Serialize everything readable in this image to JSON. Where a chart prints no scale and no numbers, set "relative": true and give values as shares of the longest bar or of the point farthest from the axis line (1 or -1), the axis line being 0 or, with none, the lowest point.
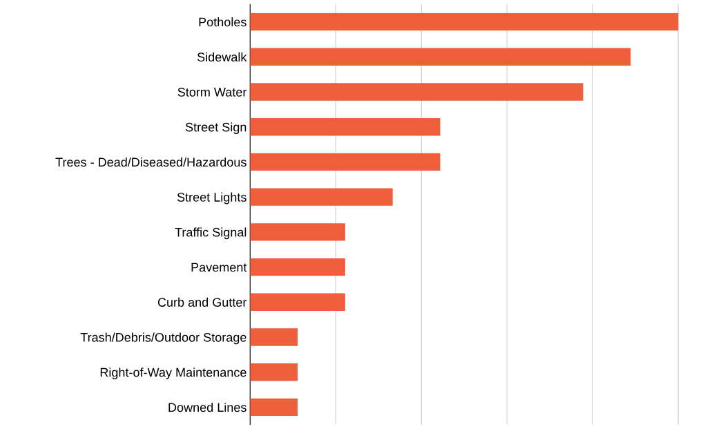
{
  "chart_data": {
    "type": "bar",
    "orientation": "horizontal",
    "relative": true,
    "grid": "x",
    "color": "#ef5f3c",
    "categories": [
      "Potholes",
      "Sidewalk",
      "Storm Water",
      "Street Sign",
      "Trees - Dead/Diseased/Hazardous",
      "Street Lights",
      "Traffic Signal",
      "Pavement",
      "Curb and Gutter",
      "Trash/Debris/Outdoor Storage",
      "Right-of-Way Maintenance",
      "Downed Lines"
    ],
    "values": [
      1,
      0.889,
      0.778,
      0.444,
      0.444,
      0.333,
      0.222,
      0.222,
      0.222,
      0.111,
      0.111,
      0.111
    ]
  }
}
